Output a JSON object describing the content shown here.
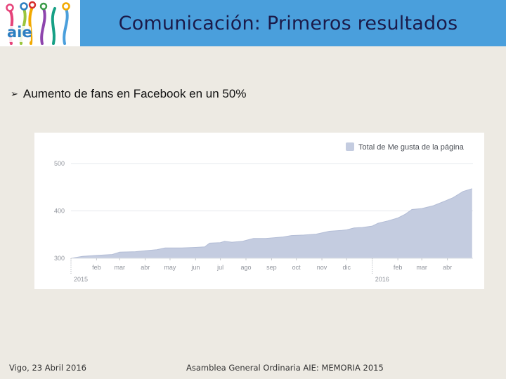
{
  "header": {
    "title": "Comunicación: Primeros resultados",
    "background_color": "#4a9fdc",
    "logo": {
      "text": "aie"
    }
  },
  "content": {
    "bullet": "Aumento de fans en Facebook en un 50%"
  },
  "chart_data": {
    "type": "area",
    "title": "",
    "xlabel": "",
    "ylabel": "",
    "ylim": [
      300,
      500
    ],
    "yticks": [
      300,
      400,
      500
    ],
    "xlim": [
      "2015-01-01",
      "2016-05-02"
    ],
    "month_ticks": [
      {
        "label": "feb",
        "date": "2015-02-01"
      },
      {
        "label": "mar",
        "date": "2015-03-01"
      },
      {
        "label": "abr",
        "date": "2015-04-01"
      },
      {
        "label": "may",
        "date": "2015-05-01"
      },
      {
        "label": "jun",
        "date": "2015-06-01"
      },
      {
        "label": "jul",
        "date": "2015-07-01"
      },
      {
        "label": "ago",
        "date": "2015-08-01"
      },
      {
        "label": "sep",
        "date": "2015-09-01"
      },
      {
        "label": "oct",
        "date": "2015-10-01"
      },
      {
        "label": "nov",
        "date": "2015-11-01"
      },
      {
        "label": "dic",
        "date": "2015-12-01"
      },
      {
        "label": "feb",
        "date": "2016-02-01"
      },
      {
        "label": "mar",
        "date": "2016-03-01"
      },
      {
        "label": "abr",
        "date": "2016-04-01"
      }
    ],
    "year_ticks": [
      {
        "label": "2015",
        "date": "2015-01-01"
      },
      {
        "label": "2016",
        "date": "2016-01-01"
      }
    ],
    "grid": true,
    "legend": {
      "position": "top-right"
    },
    "series": [
      {
        "name": "Total de Me gusta de la página",
        "color": "#c4cce0",
        "points": [
          [
            "2015-01-01",
            300
          ],
          [
            "2015-01-15",
            304
          ],
          [
            "2015-02-01",
            306
          ],
          [
            "2015-02-20",
            308
          ],
          [
            "2015-03-01",
            313
          ],
          [
            "2015-03-20",
            314
          ],
          [
            "2015-04-01",
            316
          ],
          [
            "2015-04-15",
            318
          ],
          [
            "2015-04-25",
            322
          ],
          [
            "2015-05-15",
            322
          ],
          [
            "2015-06-01",
            323
          ],
          [
            "2015-06-12",
            324
          ],
          [
            "2015-06-18",
            332
          ],
          [
            "2015-07-01",
            333
          ],
          [
            "2015-07-06",
            336
          ],
          [
            "2015-07-15",
            334
          ],
          [
            "2015-07-28",
            336
          ],
          [
            "2015-08-10",
            342
          ],
          [
            "2015-08-25",
            342
          ],
          [
            "2015-09-15",
            345
          ],
          [
            "2015-09-25",
            348
          ],
          [
            "2015-10-10",
            349
          ],
          [
            "2015-10-25",
            351
          ],
          [
            "2015-11-10",
            357
          ],
          [
            "2015-11-25",
            359
          ],
          [
            "2015-12-01",
            360
          ],
          [
            "2015-12-10",
            364
          ],
          [
            "2015-12-20",
            365
          ],
          [
            "2016-01-01",
            368
          ],
          [
            "2016-01-08",
            374
          ],
          [
            "2016-01-20",
            379
          ],
          [
            "2016-02-01",
            385
          ],
          [
            "2016-02-10",
            393
          ],
          [
            "2016-02-18",
            403
          ],
          [
            "2016-03-01",
            405
          ],
          [
            "2016-03-15",
            411
          ],
          [
            "2016-03-28",
            420
          ],
          [
            "2016-04-08",
            428
          ],
          [
            "2016-04-20",
            441
          ],
          [
            "2016-05-01",
            447
          ]
        ]
      }
    ]
  },
  "footer": {
    "left": "Vigo, 23 Abril 2016",
    "right": "Asamblea General Ordinaria AIE:   MEMORIA 2015"
  }
}
